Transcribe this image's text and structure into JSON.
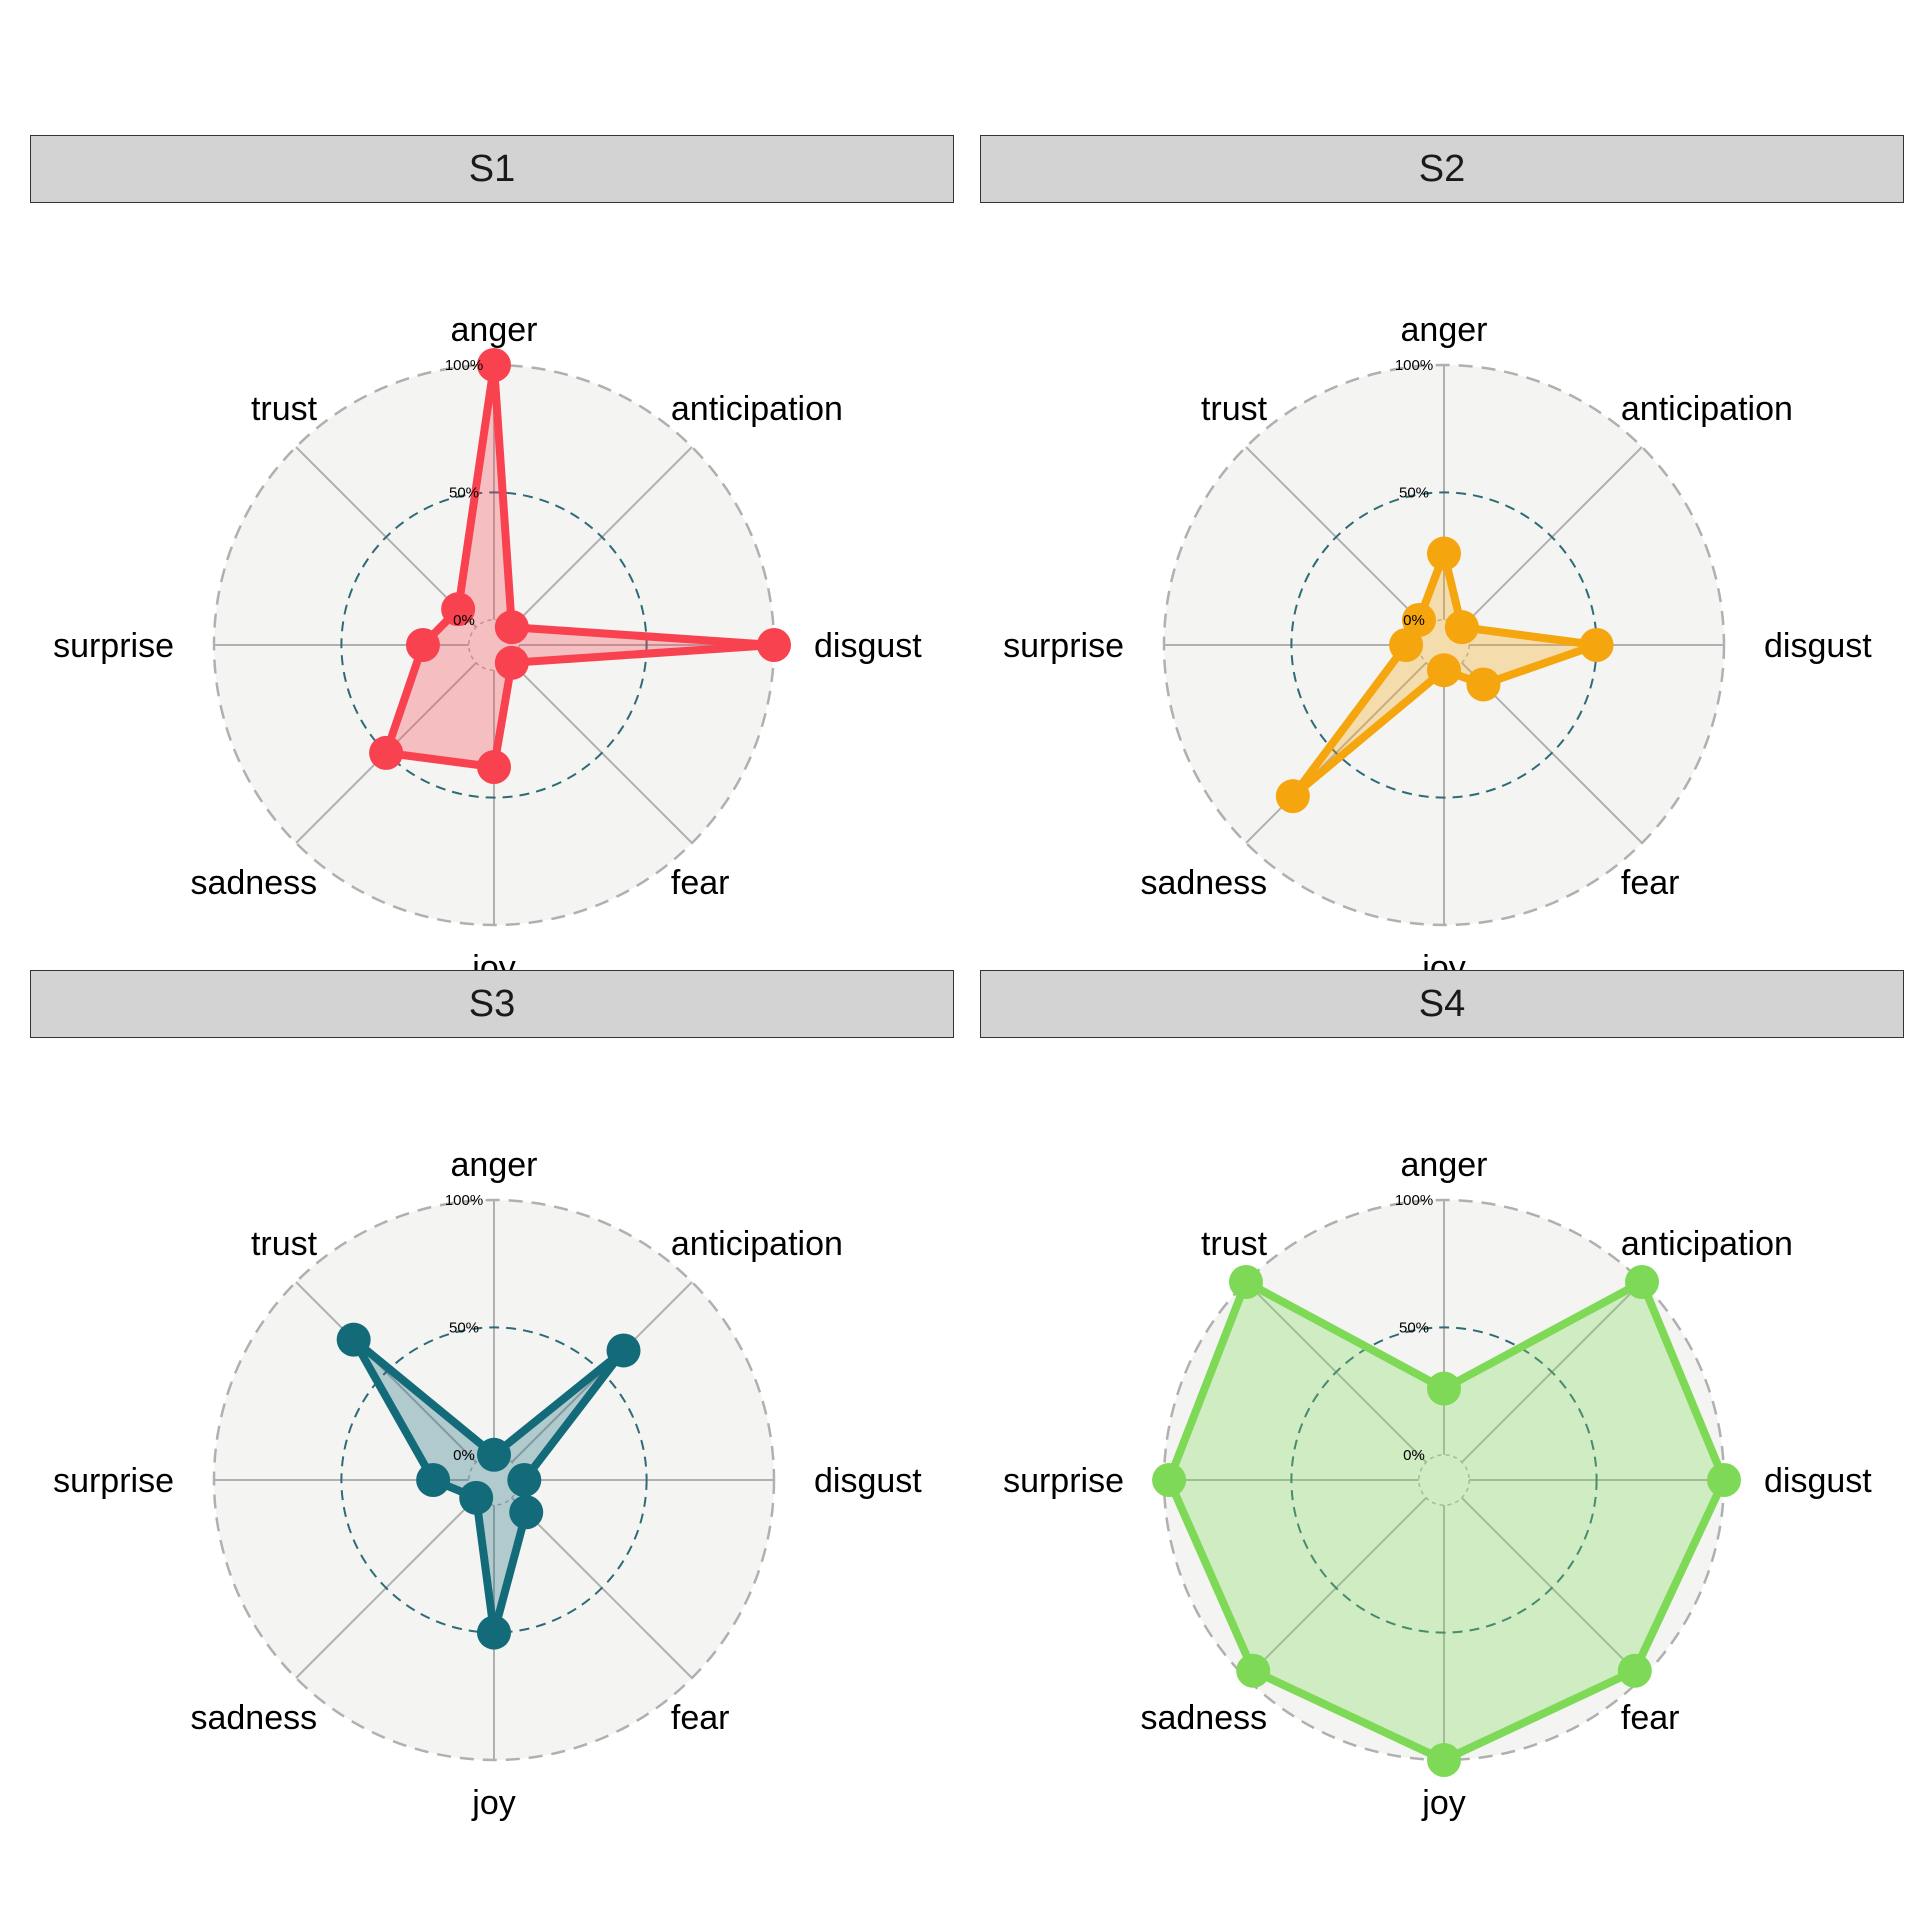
{
  "chart_data": [
    {
      "type": "radar",
      "facet": "S1",
      "axes": [
        "anger",
        "anticipation",
        "disgust",
        "fear",
        "joy",
        "sadness",
        "surprise",
        "trust"
      ],
      "values": [
        1.0,
        0.0,
        1.0,
        0.0,
        0.38,
        0.5,
        0.18,
        0.1
      ],
      "r_ticks": [
        "100%",
        "50%",
        "0%"
      ],
      "rlim": [
        0,
        1
      ],
      "color": "#f8424f"
    },
    {
      "type": "radar",
      "facet": "S2",
      "axes": [
        "anger",
        "anticipation",
        "disgust",
        "fear",
        "joy",
        "sadness",
        "surprise",
        "trust"
      ],
      "values": [
        0.26,
        0.0,
        0.5,
        0.12,
        0.0,
        0.74,
        0.05,
        0.04
      ],
      "r_ticks": [
        "100%",
        "50%",
        "0%"
      ],
      "rlim": [
        0,
        1
      ],
      "color": "#f5a50e"
    },
    {
      "type": "radar",
      "facet": "S3",
      "axes": [
        "anger",
        "anticipation",
        "disgust",
        "fear",
        "joy",
        "sadness",
        "surprise",
        "trust"
      ],
      "values": [
        0.0,
        0.62,
        0.02,
        0.08,
        0.5,
        0.0,
        0.14,
        0.68
      ],
      "r_ticks": [
        "100%",
        "50%",
        "0%"
      ],
      "rlim": [
        0,
        1
      ],
      "color": "#136b7a"
    },
    {
      "type": "radar",
      "facet": "S4",
      "axes": [
        "anger",
        "anticipation",
        "disgust",
        "fear",
        "joy",
        "sadness",
        "surprise",
        "trust"
      ],
      "values": [
        0.26,
        1.0,
        1.0,
        0.96,
        1.0,
        0.96,
        0.98,
        1.0
      ],
      "r_ticks": [
        "100%",
        "50%",
        "0%"
      ],
      "rlim": [
        0,
        1
      ],
      "color": "#7ed957"
    }
  ],
  "style": {
    "panel_background": "#f4f4f2",
    "spoke_color": "#b0b0b0",
    "outer_ring_color": "#b0b0b0",
    "mid_ring_color": "#2e6b78"
  }
}
